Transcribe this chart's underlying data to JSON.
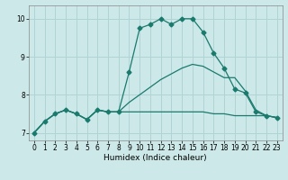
{
  "xlabel": "Humidex (Indice chaleur)",
  "x_ticks": [
    0,
    1,
    2,
    3,
    4,
    5,
    6,
    7,
    8,
    9,
    10,
    11,
    12,
    13,
    14,
    15,
    16,
    17,
    18,
    19,
    20,
    21,
    22,
    23
  ],
  "xlim": [
    -0.5,
    23.5
  ],
  "ylim": [
    6.8,
    10.35
  ],
  "y_ticks": [
    7,
    8,
    9,
    10
  ],
  "background_color": "#cce8e8",
  "line_color": "#1a7a6e",
  "grid_color": "#b0d4d4",
  "series": [
    [
      7.0,
      7.3,
      7.5,
      7.6,
      7.5,
      7.35,
      7.6,
      7.55,
      7.55,
      8.6,
      9.75,
      9.85,
      10.0,
      9.85,
      10.0,
      10.0,
      9.65,
      9.1,
      8.7,
      8.15,
      8.05,
      7.55,
      7.45,
      7.4
    ],
    [
      7.0,
      7.3,
      7.5,
      7.6,
      7.5,
      7.35,
      7.6,
      7.55,
      7.55,
      7.55,
      7.55,
      7.55,
      7.55,
      7.55,
      7.55,
      7.55,
      7.55,
      7.5,
      7.5,
      7.45,
      7.45,
      7.45,
      7.45,
      7.4
    ],
    [
      7.0,
      7.3,
      7.5,
      7.6,
      7.5,
      7.35,
      7.6,
      7.55,
      7.55,
      7.8,
      8.0,
      8.2,
      8.4,
      8.55,
      8.7,
      8.8,
      8.75,
      8.6,
      8.45,
      8.45,
      8.1,
      7.6,
      7.45,
      7.4
    ]
  ],
  "marker_series": 0,
  "marker_style": "D",
  "marker_size": 2.5,
  "linewidth": 0.9,
  "tick_fontsize": 5.5,
  "xlabel_fontsize": 6.5
}
